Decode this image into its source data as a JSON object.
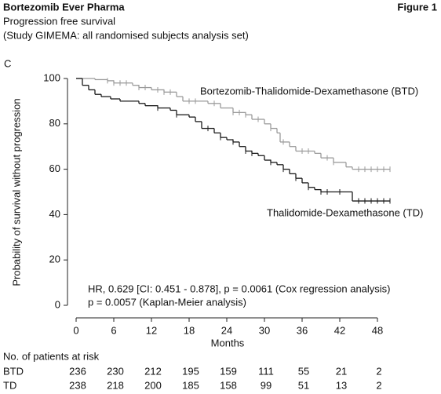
{
  "chart_data": {
    "type": "step",
    "title": "Bortezomib Ever Pharma",
    "figure_label": "Figure 1",
    "subtitle": [
      "Progression free survival",
      "(Study GIMEMA: all randomised subjects analysis set)"
    ],
    "panel_label": "C",
    "xlabel": "Months",
    "ylabel": "Probability of survival without progression",
    "xlim": [
      0,
      48
    ],
    "ylim": [
      0,
      100
    ],
    "xticks": [
      0,
      6,
      12,
      18,
      24,
      30,
      36,
      42,
      48
    ],
    "yticks": [
      0,
      20,
      40,
      60,
      80,
      100
    ],
    "series": [
      {
        "name": "Bortezomib-Thalidomide-Dexamethasone (BTD)",
        "color": "#9a9a9a",
        "x": [
          0,
          3,
          5,
          6,
          9,
          10,
          12,
          14,
          16,
          17,
          21,
          23,
          25,
          27,
          28,
          30,
          31,
          32,
          32.5,
          34,
          35,
          38,
          39,
          41,
          43,
          44,
          50
        ],
        "y": [
          100,
          99.5,
          99,
          98,
          97,
          96,
          95,
          94,
          92,
          90,
          89,
          87,
          85,
          84,
          82,
          80,
          78,
          76,
          72,
          70,
          68,
          67,
          65,
          63,
          61,
          60,
          60
        ],
        "censored": [
          5,
          6,
          7,
          8,
          10,
          11,
          13,
          14,
          15,
          18,
          19,
          22,
          25,
          26,
          27,
          29,
          31,
          33,
          36,
          37,
          40,
          41,
          45,
          46,
          47,
          48,
          49,
          50
        ]
      },
      {
        "name": "Thalidomide-Dexamethasone (TD)",
        "color": "#1a1a1a",
        "x": [
          0,
          1,
          2,
          3,
          4,
          5.5,
          7,
          10,
          11,
          13,
          15,
          16,
          18,
          19,
          20,
          22,
          23,
          24,
          25,
          26,
          27,
          28,
          29,
          30,
          31,
          32,
          33,
          34,
          35,
          36,
          37,
          38,
          39,
          44,
          50
        ],
        "y": [
          100,
          97,
          95,
          93,
          92,
          91,
          90,
          89,
          88,
          87,
          86,
          84,
          83,
          81,
          78,
          76,
          74,
          73,
          72,
          70,
          68,
          67,
          66,
          64,
          63,
          62,
          60,
          58,
          56,
          54,
          52,
          51,
          50,
          46,
          46
        ],
        "censored": [
          13,
          16,
          21,
          23,
          25,
          27,
          28,
          31,
          33,
          35,
          37,
          39,
          40,
          42,
          45,
          46,
          47,
          48,
          49,
          50
        ]
      }
    ],
    "annotations": [
      "HR, 0.629 [CI: 0.451 - 0.878], p = 0.0061 (Cox regression analysis)",
      "p = 0.0057 (Kaplan-Meier analysis)"
    ],
    "risk_table": {
      "title": "No. of patients at risk",
      "rows": [
        {
          "name": "BTD",
          "values": [
            236,
            230,
            212,
            195,
            159,
            111,
            55,
            21,
            2
          ]
        },
        {
          "name": "TD",
          "values": [
            238,
            218,
            200,
            185,
            158,
            99,
            51,
            13,
            2
          ]
        }
      ]
    }
  }
}
